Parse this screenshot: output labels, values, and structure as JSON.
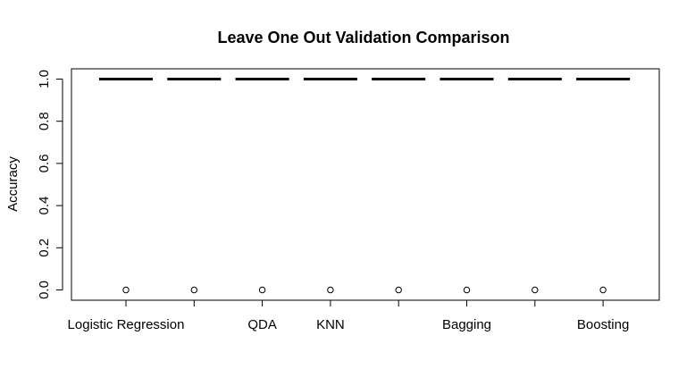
{
  "chart_data": {
    "type": "box",
    "title": "Leave One Out Validation Comparison",
    "xlabel": "",
    "ylabel": "Accuracy",
    "ylim": [
      0,
      1
    ],
    "yticks": [
      "0.0",
      "0.2",
      "0.4",
      "0.6",
      "0.8",
      "1.0"
    ],
    "grid": false,
    "legend": "none",
    "categories": [
      "Logistic Regression",
      "",
      "QDA",
      "KNN",
      "",
      "Bagging",
      "",
      "Boosting"
    ],
    "boxes": [
      {
        "median": 1.0,
        "outlier": 0.0
      },
      {
        "median": 1.0,
        "outlier": 0.0
      },
      {
        "median": 1.0,
        "outlier": 0.0
      },
      {
        "median": 1.0,
        "outlier": 0.0
      },
      {
        "median": 1.0,
        "outlier": 0.0
      },
      {
        "median": 1.0,
        "outlier": 0.0
      },
      {
        "median": 1.0,
        "outlier": 0.0
      },
      {
        "median": 1.0,
        "outlier": 0.0
      }
    ]
  }
}
